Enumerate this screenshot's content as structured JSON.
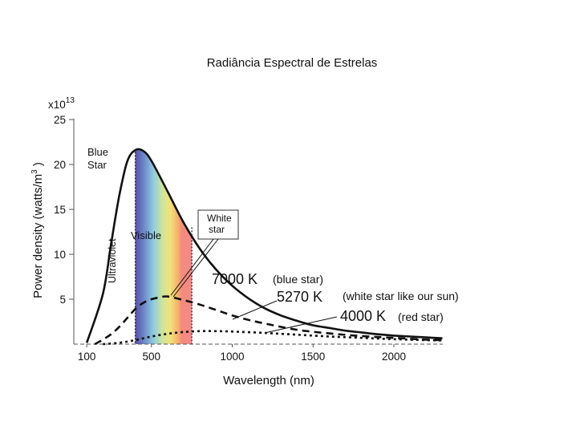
{
  "title": "Radiância Espectral de Estrelas",
  "chart_data": {
    "type": "line",
    "multiplier_label": "x10",
    "multiplier_exp": "13",
    "xlabel": "Wavelength (nm)",
    "ylabel_main": "Power density (watts/m",
    "ylabel_sup": "3",
    "ylabel_close": " )",
    "xlim": [
      100,
      2300
    ],
    "ylim": [
      0,
      25
    ],
    "xticks": [
      100,
      500,
      1000,
      1500,
      2000
    ],
    "yticks": [
      5,
      10,
      15,
      20,
      25
    ],
    "grid": false,
    "visible_band": [
      400,
      750
    ],
    "series": [
      {
        "name": "7000 K",
        "style": "solid",
        "x": [
          100,
          200,
          250,
          300,
          350,
          400,
          450,
          500,
          600,
          700,
          800,
          900,
          1000,
          1100,
          1200,
          1300,
          1400,
          1500,
          1600,
          1700,
          1800,
          1900,
          2000,
          2100,
          2200,
          2300
        ],
        "y": [
          0.15,
          5.6,
          11.1,
          16.4,
          20.3,
          21.6,
          21.5,
          20.4,
          17.0,
          13.5,
          10.6,
          8.3,
          6.5,
          5.1,
          4.0,
          3.2,
          2.6,
          2.1,
          1.8,
          1.5,
          1.3,
          1.1,
          0.95,
          0.85,
          0.75,
          0.65
        ]
      },
      {
        "name": "5270 K",
        "style": "dashed",
        "x": [
          150,
          200,
          250,
          300,
          350,
          400,
          450,
          500,
          550,
          600,
          700,
          800,
          900,
          1000,
          1100,
          1200,
          1400,
          1600,
          1800,
          2000,
          2200,
          2300
        ],
        "y": [
          0.0,
          0.5,
          1.1,
          1.9,
          2.9,
          3.9,
          4.6,
          5.0,
          5.2,
          5.3,
          4.9,
          4.4,
          3.8,
          3.2,
          2.7,
          2.3,
          1.6,
          1.2,
          0.9,
          0.7,
          0.5,
          0.45
        ]
      },
      {
        "name": "4000 K",
        "style": "dotted",
        "x": [
          200,
          300,
          400,
          500,
          600,
          700,
          800,
          900,
          1000,
          1200,
          1400,
          1600,
          1800,
          2000,
          2200,
          2300
        ],
        "y": [
          0.0,
          0.15,
          0.45,
          0.85,
          1.15,
          1.35,
          1.45,
          1.45,
          1.4,
          1.25,
          1.05,
          0.85,
          0.7,
          0.55,
          0.45,
          0.4
        ]
      }
    ],
    "annotations": {
      "blue_star": [
        "Blue",
        "Star"
      ],
      "visible": "Visible",
      "ultraviolet": "Ultraviolet",
      "white_star": [
        "White",
        "star"
      ],
      "label_7000": "7000 K",
      "desc_7000": "(blue star)",
      "label_5270": "5270 K",
      "desc_5270": "(white star like our sun)",
      "label_4000": "4000 K",
      "desc_4000": "(red star)"
    }
  }
}
